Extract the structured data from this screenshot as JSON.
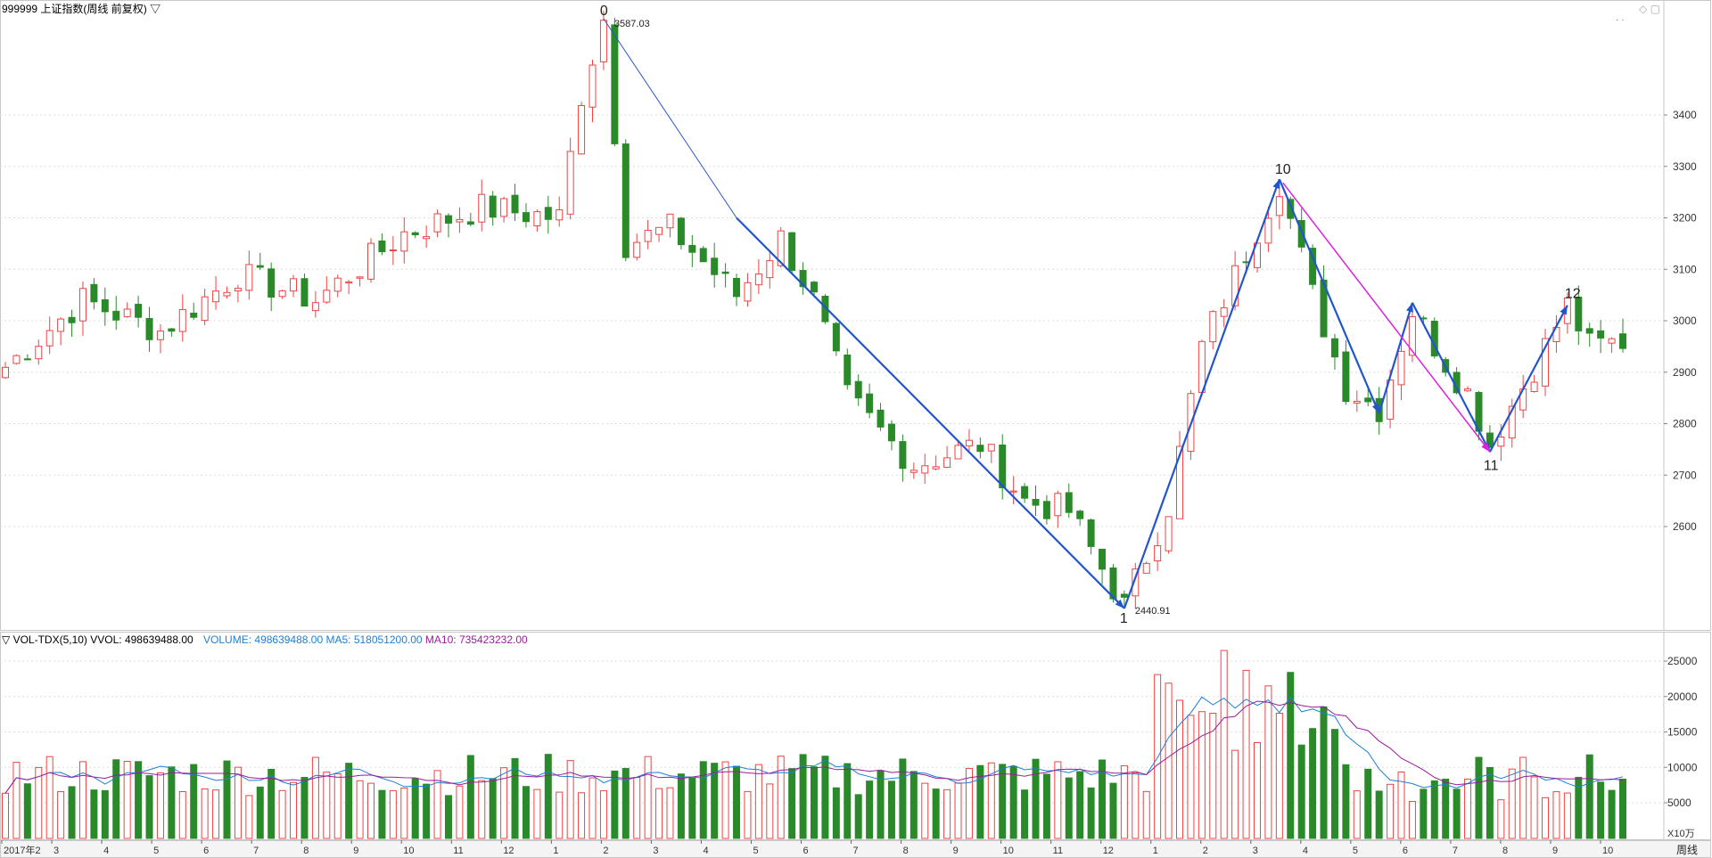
{
  "header": {
    "symbol_title": "999999 上证指数(周线 前复权)",
    "dropdown_glyph": "▽",
    "window_controls": [
      "◇",
      "▢"
    ],
    "dots": "· ·"
  },
  "price_axis": {
    "labels": [
      "3400",
      "3300",
      "3200",
      "3100",
      "3000",
      "2900",
      "2800",
      "2700",
      "2600"
    ]
  },
  "price_annotations": {
    "high_label": "3587.03",
    "low_label": "2440.91",
    "wave_labels": [
      "0",
      "1",
      "10",
      "11",
      "12"
    ]
  },
  "volume_header": {
    "indicator": "▽ VOL-TDX(5,10)",
    "vvol": "VVOL: 498639488.00",
    "volume": "VOLUME: 498639488.00",
    "ma5": "MA5: 518051200.00",
    "ma10": "MA10: 735423232.00"
  },
  "volume_axis": {
    "labels": [
      "25000",
      "20000",
      "15000",
      "10000",
      "5000"
    ],
    "unit": "X10万"
  },
  "time_axis": {
    "labels": [
      "2017年2",
      "3",
      "4",
      "5",
      "6",
      "7",
      "8",
      "9",
      "10",
      "11",
      "12",
      "1",
      "2",
      "3",
      "4",
      "5",
      "6",
      "7",
      "8",
      "9",
      "10",
      "11",
      "12",
      "1",
      "2",
      "3",
      "4",
      "5",
      "6",
      "7",
      "8",
      "9",
      "10"
    ],
    "period_button": "周线"
  },
  "colors": {
    "up": "#ee4444",
    "down": "#2a8a2a",
    "arrow_blue": "#2255cc",
    "arrow_magenta": "#dd22dd",
    "vol_text_blue": "#1d7fd6",
    "ma10_purple": "#9a1c9a",
    "ma5_blue": "#1d7fd6"
  }
}
